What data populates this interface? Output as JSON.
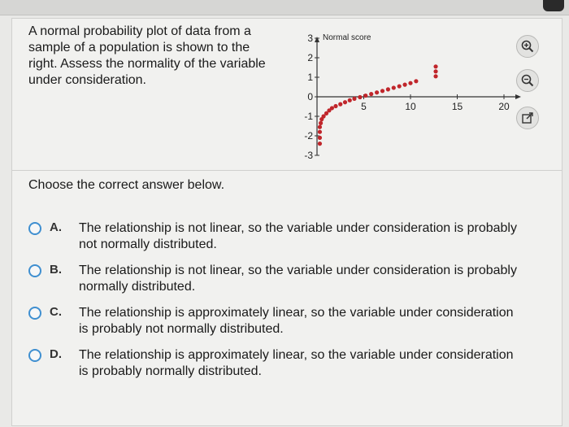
{
  "question": {
    "text": "A normal probability plot of data from a sample of a population is shown to the right. Assess the normality of the variable under consideration."
  },
  "chart_data": {
    "type": "scatter",
    "title": "",
    "ylabel": "Normal score",
    "xlabel": "",
    "xlim": [
      0,
      22
    ],
    "ylim": [
      -3,
      3.3
    ],
    "x_ticks": [
      5,
      10,
      15,
      20
    ],
    "x_tick_labels": [
      "5",
      "10",
      "15",
      "20"
    ],
    "y_ticks": [
      3,
      2,
      1,
      0,
      -1,
      -2,
      -3
    ],
    "y_tick_labels": [
      "3",
      "2",
      "1",
      "0",
      "-1",
      "-2",
      "-3"
    ],
    "grid": false,
    "point_color": "#c0262b",
    "series": [
      {
        "x": [
          0.3,
          0.3,
          0.3,
          0.3,
          0.4,
          0.5,
          0.7,
          1.0,
          1.3,
          1.6,
          2.0,
          2.5,
          3.0,
          3.5,
          4.0,
          4.6,
          5.2,
          5.8,
          6.4,
          7.0,
          7.6,
          8.2,
          8.8,
          9.4,
          10.0,
          10.6,
          12.7,
          12.7,
          12.7
        ],
        "y": [
          -2.4,
          -2.1,
          -1.8,
          -1.55,
          -1.35,
          -1.15,
          -1.0,
          -0.85,
          -0.7,
          -0.58,
          -0.48,
          -0.38,
          -0.28,
          -0.18,
          -0.1,
          -0.02,
          0.06,
          0.14,
          0.22,
          0.3,
          0.38,
          0.46,
          0.54,
          0.62,
          0.7,
          0.8,
          1.05,
          1.3,
          1.55
        ]
      }
    ]
  },
  "prompt": "Choose the correct answer below.",
  "options": [
    {
      "letter": "A.",
      "text": "The relationship is not linear, so the variable under consideration is probably not normally distributed."
    },
    {
      "letter": "B.",
      "text": "The relationship is not linear, so the variable under consideration is probably normally distributed."
    },
    {
      "letter": "C.",
      "text": "The relationship is approximately linear, so the variable under consideration is probably not normally distributed."
    },
    {
      "letter": "D.",
      "text": "The relationship is approximately linear, so the variable under consideration is probably normally distributed."
    }
  ],
  "icons": {
    "zoom_in": "zoom-in-icon",
    "zoom_out": "zoom-out-icon",
    "popout": "external-link-icon"
  }
}
